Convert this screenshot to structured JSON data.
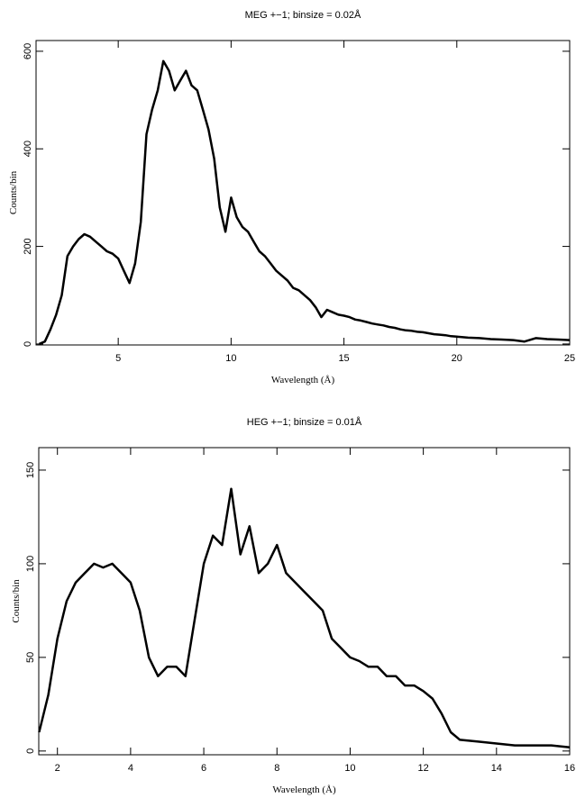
{
  "chart_data": [
    {
      "type": "line",
      "title": "MEG +−1; binsize = 0.02Å",
      "x_label": "Wavelength (Å)",
      "y_label": "Counts/bin",
      "color": "#000000",
      "x": [
        1.5,
        1.75,
        2,
        2.25,
        2.5,
        2.75,
        3,
        3.25,
        3.5,
        3.75,
        4,
        4.25,
        4.5,
        4.75,
        5,
        5.25,
        5.5,
        5.75,
        6,
        6.25,
        6.5,
        6.75,
        7,
        7.25,
        7.5,
        7.75,
        8,
        8.25,
        8.5,
        8.75,
        9,
        9.25,
        9.5,
        9.75,
        10,
        10.25,
        10.5,
        10.75,
        11,
        11.25,
        11.5,
        11.75,
        12,
        12.25,
        12.5,
        12.75,
        13,
        13.25,
        13.5,
        13.75,
        14,
        14.25,
        14.5,
        14.75,
        15,
        15.25,
        15.5,
        15.75,
        16,
        16.25,
        16.5,
        16.75,
        17,
        17.25,
        17.5,
        17.75,
        18,
        18.25,
        18.5,
        18.75,
        19,
        19.25,
        19.5,
        19.75,
        20,
        20.5,
        21,
        21.5,
        22,
        22.5,
        23,
        23.5,
        24,
        24.5,
        25
      ],
      "values": [
        0,
        5,
        30,
        60,
        100,
        180,
        200,
        215,
        225,
        220,
        210,
        200,
        190,
        185,
        175,
        150,
        125,
        165,
        250,
        430,
        480,
        520,
        580,
        560,
        520,
        540,
        560,
        530,
        520,
        480,
        440,
        380,
        280,
        230,
        300,
        260,
        240,
        230,
        210,
        190,
        180,
        165,
        150,
        140,
        130,
        115,
        110,
        100,
        90,
        75,
        55,
        70,
        65,
        60,
        58,
        55,
        50,
        48,
        45,
        42,
        40,
        38,
        35,
        33,
        30,
        28,
        27,
        25,
        24,
        22,
        20,
        19,
        18,
        16,
        15,
        13,
        12,
        10,
        9,
        8,
        5,
        12,
        10,
        9,
        8
      ],
      "xlim": [
        1.36,
        25
      ],
      "ylim": [
        -2,
        622
      ],
      "xticks": [
        5,
        10,
        15,
        20,
        25
      ],
      "yticks": [
        0,
        200,
        400,
        600
      ]
    },
    {
      "type": "line",
      "title": "HEG +−1; binsize = 0.01Å",
      "x_label": "Wavelength (Å)",
      "y_label": "Counts/bin",
      "color": "#000000",
      "x": [
        1.5,
        1.75,
        2,
        2.25,
        2.5,
        2.75,
        3,
        3.25,
        3.5,
        3.75,
        4,
        4.25,
        4.5,
        4.75,
        5,
        5.25,
        5.5,
        5.75,
        6,
        6.25,
        6.5,
        6.75,
        7,
        7.25,
        7.5,
        7.75,
        8,
        8.25,
        8.5,
        8.75,
        9,
        9.25,
        9.5,
        9.75,
        10,
        10.25,
        10.5,
        10.75,
        11,
        11.25,
        11.5,
        11.75,
        12,
        12.25,
        12.5,
        12.75,
        13,
        13.5,
        14,
        14.5,
        15,
        15.5,
        16
      ],
      "values": [
        10,
        30,
        60,
        80,
        90,
        95,
        100,
        98,
        100,
        95,
        90,
        75,
        50,
        40,
        45,
        45,
        40,
        70,
        100,
        115,
        110,
        140,
        105,
        120,
        95,
        100,
        110,
        95,
        90,
        85,
        80,
        75,
        60,
        55,
        50,
        48,
        45,
        45,
        40,
        40,
        35,
        35,
        32,
        28,
        20,
        10,
        6,
        5,
        4,
        3,
        3,
        3,
        2
      ],
      "xlim": [
        1.49,
        16
      ],
      "ylim": [
        -2,
        162
      ],
      "xticks": [
        2,
        4,
        6,
        8,
        10,
        12,
        14,
        16
      ],
      "yticks": [
        0,
        50,
        100,
        150
      ]
    }
  ]
}
